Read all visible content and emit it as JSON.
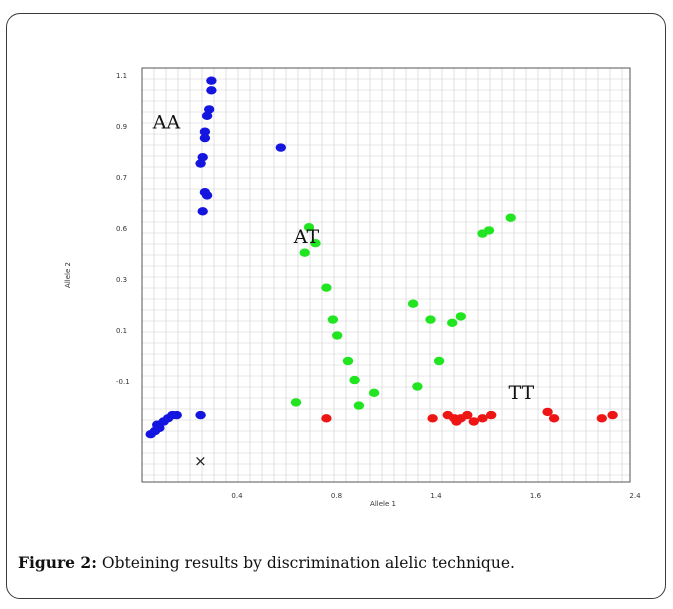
{
  "caption": {
    "label": "Figure 2:",
    "text": "Obteining results by discrimination alelic technique."
  },
  "chart_data": {
    "type": "scatter",
    "xlabel": "Allele 1",
    "ylabel": "Allele 2",
    "xlim": [
      0.15,
      2.4
    ],
    "ylim": [
      -0.18,
      1.12
    ],
    "xticks": [
      0.4,
      0.8,
      1.4,
      1.6,
      2.4
    ],
    "yticks": [
      "1.1",
      "0.9",
      "0.7",
      "0.6",
      "0.3",
      "0.1",
      "-0.1"
    ],
    "grid": true,
    "annotations": [
      {
        "text": "AA",
        "x": 0.2,
        "y": 0.93
      },
      {
        "text": "AT",
        "x": 0.85,
        "y": 0.57
      },
      {
        "text": "TT",
        "x": 1.84,
        "y": 0.08
      },
      {
        "text": "×",
        "x": 0.39,
        "y": -0.13
      }
    ],
    "series": [
      {
        "cluster": "AA",
        "color": "#1515e0",
        "points": [
          [
            0.47,
            1.08
          ],
          [
            0.47,
            1.05
          ],
          [
            0.46,
            0.99
          ],
          [
            0.45,
            0.97
          ],
          [
            0.44,
            0.92
          ],
          [
            0.44,
            0.9
          ],
          [
            0.43,
            0.84
          ],
          [
            0.42,
            0.82
          ],
          [
            0.44,
            0.73
          ],
          [
            0.45,
            0.72
          ],
          [
            0.43,
            0.67
          ],
          [
            0.22,
            0.0
          ],
          [
            0.23,
            -0.01
          ],
          [
            0.25,
            0.01
          ],
          [
            0.27,
            0.02
          ],
          [
            0.29,
            0.03
          ],
          [
            0.31,
            0.03
          ],
          [
            0.42,
            0.03
          ],
          [
            0.19,
            -0.03
          ],
          [
            0.21,
            -0.02
          ],
          [
            0.79,
            0.87
          ]
        ]
      },
      {
        "cluster": "AT",
        "color": "#22e522",
        "points": [
          [
            0.9,
            0.54
          ],
          [
            0.92,
            0.62
          ],
          [
            0.95,
            0.57
          ],
          [
            1.0,
            0.43
          ],
          [
            1.03,
            0.33
          ],
          [
            1.05,
            0.28
          ],
          [
            1.1,
            0.2
          ],
          [
            1.13,
            0.14
          ],
          [
            1.22,
            0.1
          ],
          [
            1.4,
            0.38
          ],
          [
            1.48,
            0.33
          ],
          [
            1.58,
            0.32
          ],
          [
            1.62,
            0.34
          ],
          [
            1.52,
            0.2
          ],
          [
            1.42,
            0.12
          ],
          [
            1.15,
            0.06
          ],
          [
            0.86,
            0.07
          ],
          [
            1.72,
            0.6
          ],
          [
            1.75,
            0.61
          ],
          [
            1.85,
            0.65
          ]
        ]
      },
      {
        "cluster": "TT",
        "color": "#ee1515",
        "points": [
          [
            1.0,
            0.02
          ],
          [
            1.49,
            0.02
          ],
          [
            1.56,
            0.03
          ],
          [
            1.59,
            0.02
          ],
          [
            1.6,
            0.01
          ],
          [
            1.62,
            0.02
          ],
          [
            1.65,
            0.03
          ],
          [
            1.68,
            0.01
          ],
          [
            1.72,
            0.02
          ],
          [
            1.76,
            0.03
          ],
          [
            2.02,
            0.04
          ],
          [
            2.05,
            0.02
          ],
          [
            2.27,
            0.02
          ],
          [
            2.32,
            0.03
          ]
        ]
      }
    ]
  }
}
